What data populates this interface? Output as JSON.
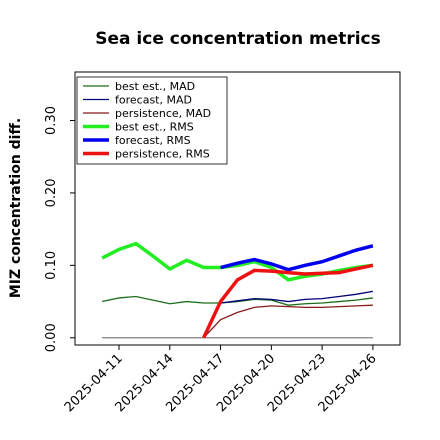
{
  "chart_data": {
    "type": "line",
    "title": "Sea ice concentration metrics",
    "ylabel": "MIZ concentration diff.",
    "x": [
      "2025-04-10",
      "2025-04-11",
      "2025-04-12",
      "2025-04-13",
      "2025-04-14",
      "2025-04-15",
      "2025-04-16",
      "2025-04-17",
      "2025-04-18",
      "2025-04-19",
      "2025-04-20",
      "2025-04-21",
      "2025-04-22",
      "2025-04-23",
      "2025-04-24",
      "2025-04-25",
      "2025-04-26"
    ],
    "xticks": [
      "2025-04-11",
      "2025-04-14",
      "2025-04-17",
      "2025-04-20",
      "2025-04-23",
      "2025-04-26"
    ],
    "highlight_xtick_index": 2,
    "highlight_color": "#2ca02c",
    "ylim": [
      -0.01,
      0.367
    ],
    "yticks": [
      {
        "value": 0,
        "label": "0.00"
      },
      {
        "value": 0.1,
        "label": "0.10"
      },
      {
        "value": 0.2,
        "label": "0.20"
      },
      {
        "value": 0.3,
        "label": "0.30"
      }
    ],
    "legend": "upper left",
    "series": [
      {
        "name": null,
        "color": "#808080",
        "width": 1.2,
        "values": [
          0,
          0,
          0,
          0,
          0,
          0,
          0,
          0,
          0,
          0,
          0,
          0,
          0,
          0,
          0,
          0,
          0
        ]
      },
      {
        "name": "best est., MAD",
        "color": "#1b6e1b",
        "width": 1.3,
        "values": [
          0.05,
          0.055,
          0.057,
          0.052,
          0.047,
          0.05,
          0.048,
          0.048,
          0.05,
          0.053,
          0.052,
          0.045,
          0.047,
          0.048,
          0.05,
          0.052,
          0.055
        ]
      },
      {
        "name": "forecast,  MAD",
        "color": "#00007a",
        "width": 1.3,
        "values": [
          null,
          null,
          null,
          null,
          null,
          null,
          null,
          0.048,
          0.051,
          0.054,
          0.053,
          0.05,
          0.053,
          0.054,
          0.057,
          0.06,
          0.064
        ]
      },
      {
        "name": "persistence, MAD",
        "color": "#8b1a1a",
        "width": 1.3,
        "values": [
          null,
          null,
          null,
          null,
          null,
          null,
          0,
          0.025,
          0.035,
          0.042,
          0.044,
          0.043,
          0.042,
          0.042,
          0.043,
          0.044,
          0.045
        ]
      },
      {
        "name": "best est., RMS",
        "color": "#22ee22",
        "width": 3.5,
        "values": [
          0.11,
          0.122,
          0.13,
          0.113,
          0.095,
          0.107,
          0.097,
          0.097,
          0.1,
          0.105,
          0.097,
          0.08,
          0.085,
          0.088,
          0.093,
          0.097,
          0.1
        ]
      },
      {
        "name": "forecast,  RMS",
        "color": "#0000ee",
        "width": 3.5,
        "values": [
          null,
          null,
          null,
          null,
          null,
          null,
          null,
          0.097,
          0.103,
          0.108,
          0.102,
          0.094,
          0.1,
          0.105,
          0.113,
          0.121,
          0.127
        ]
      },
      {
        "name": "persistence, RMS",
        "color": "#ee1111",
        "width": 3.5,
        "values": [
          null,
          null,
          null,
          null,
          null,
          null,
          0,
          0.05,
          0.08,
          0.093,
          0.092,
          0.09,
          0.088,
          0.089,
          0.09,
          0.095,
          0.1
        ]
      }
    ]
  }
}
